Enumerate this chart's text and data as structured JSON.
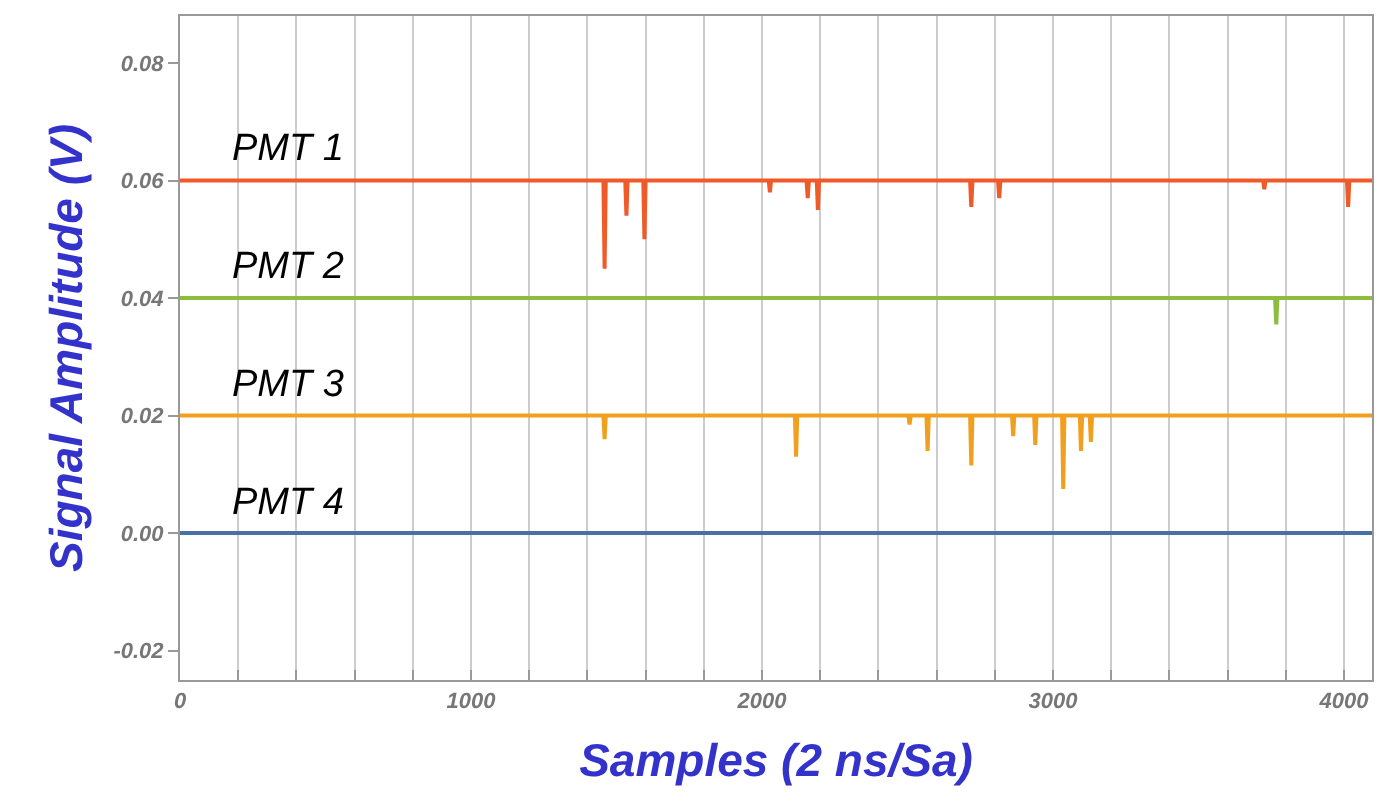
{
  "chart_data": {
    "type": "line",
    "xlabel": "Samples (2 ns/Sa)",
    "ylabel": "Signal Amplitude (V)",
    "xlim": [
      0,
      4096
    ],
    "ylim": [
      -0.025,
      0.088
    ],
    "xticks": [
      0,
      {
        "value": 200,
        "label": null
      },
      {
        "value": 400,
        "label": null
      },
      {
        "value": 600,
        "label": null
      },
      {
        "value": 800,
        "label": null
      },
      1000,
      {
        "value": 1200,
        "label": null
      },
      {
        "value": 1400,
        "label": null
      },
      {
        "value": 1600,
        "label": null
      },
      {
        "value": 1800,
        "label": null
      },
      2000,
      {
        "value": 2200,
        "label": null
      },
      {
        "value": 2400,
        "label": null
      },
      {
        "value": 2600,
        "label": null
      },
      {
        "value": 2800,
        "label": null
      },
      3000,
      {
        "value": 3200,
        "label": null
      },
      {
        "value": 3400,
        "label": null
      },
      {
        "value": 3600,
        "label": null
      },
      {
        "value": 3800,
        "label": null
      },
      4000
    ],
    "yticks": [
      {
        "value": -0.02,
        "label": "-0.02"
      },
      {
        "value": 0,
        "label": "0.00"
      },
      {
        "value": 0.02,
        "label": "0.02"
      },
      {
        "value": 0.04,
        "label": "0.04"
      },
      {
        "value": 0.06,
        "label": "0.06"
      },
      {
        "value": 0.08,
        "label": "0.08"
      }
    ],
    "grid": "x",
    "legend": false,
    "marker": "none",
    "line_style": "solid",
    "series": [
      {
        "name": "PMT 1",
        "color": "#f05a28",
        "x": [
          0,
          1455,
          1459,
          1463,
          1530,
          1534,
          1538,
          1592,
          1596,
          1600,
          2023,
          2027,
          2031,
          2153,
          2157,
          2161,
          2188,
          2192,
          2196,
          2715,
          2719,
          2723,
          2811,
          2815,
          2819,
          3722,
          3726,
          3730,
          4010,
          4014,
          4018,
          4096
        ],
        "values": [
          0.06,
          0.06,
          0.045,
          0.06,
          0.06,
          0.054,
          0.06,
          0.06,
          0.05,
          0.06,
          0.06,
          0.058,
          0.06,
          0.06,
          0.057,
          0.06,
          0.06,
          0.055,
          0.06,
          0.06,
          0.0555,
          0.06,
          0.06,
          0.057,
          0.06,
          0.06,
          0.0585,
          0.06,
          0.06,
          0.0555,
          0.06,
          0.06
        ]
      },
      {
        "name": "PMT 2",
        "color": "#8cbd3f",
        "x": [
          0,
          3763,
          3767,
          3771,
          4096
        ],
        "values": [
          0.04,
          0.04,
          0.0355,
          0.04,
          0.04
        ]
      },
      {
        "name": "PMT 3",
        "color": "#f0a01e",
        "x": [
          0,
          1455,
          1459,
          1463,
          2113,
          2117,
          2121,
          2503,
          2507,
          2511,
          2565,
          2569,
          2573,
          2715,
          2719,
          2723,
          2859,
          2863,
          2867,
          2935,
          2939,
          2943,
          3031,
          3035,
          3039,
          3092,
          3096,
          3100,
          3126,
          3130,
          3134,
          4096
        ],
        "values": [
          0.02,
          0.02,
          0.016,
          0.02,
          0.02,
          0.013,
          0.02,
          0.02,
          0.0185,
          0.02,
          0.02,
          0.014,
          0.02,
          0.02,
          0.0115,
          0.02,
          0.02,
          0.0165,
          0.02,
          0.02,
          0.015,
          0.02,
          0.02,
          0.0075,
          0.02,
          0.02,
          0.014,
          0.02,
          0.02,
          0.0155,
          0.02,
          0.02
        ]
      },
      {
        "name": "PMT 4",
        "color": "#4a6fa5",
        "x": [
          0,
          4096
        ],
        "values": [
          0.0,
          0.0
        ]
      }
    ]
  }
}
